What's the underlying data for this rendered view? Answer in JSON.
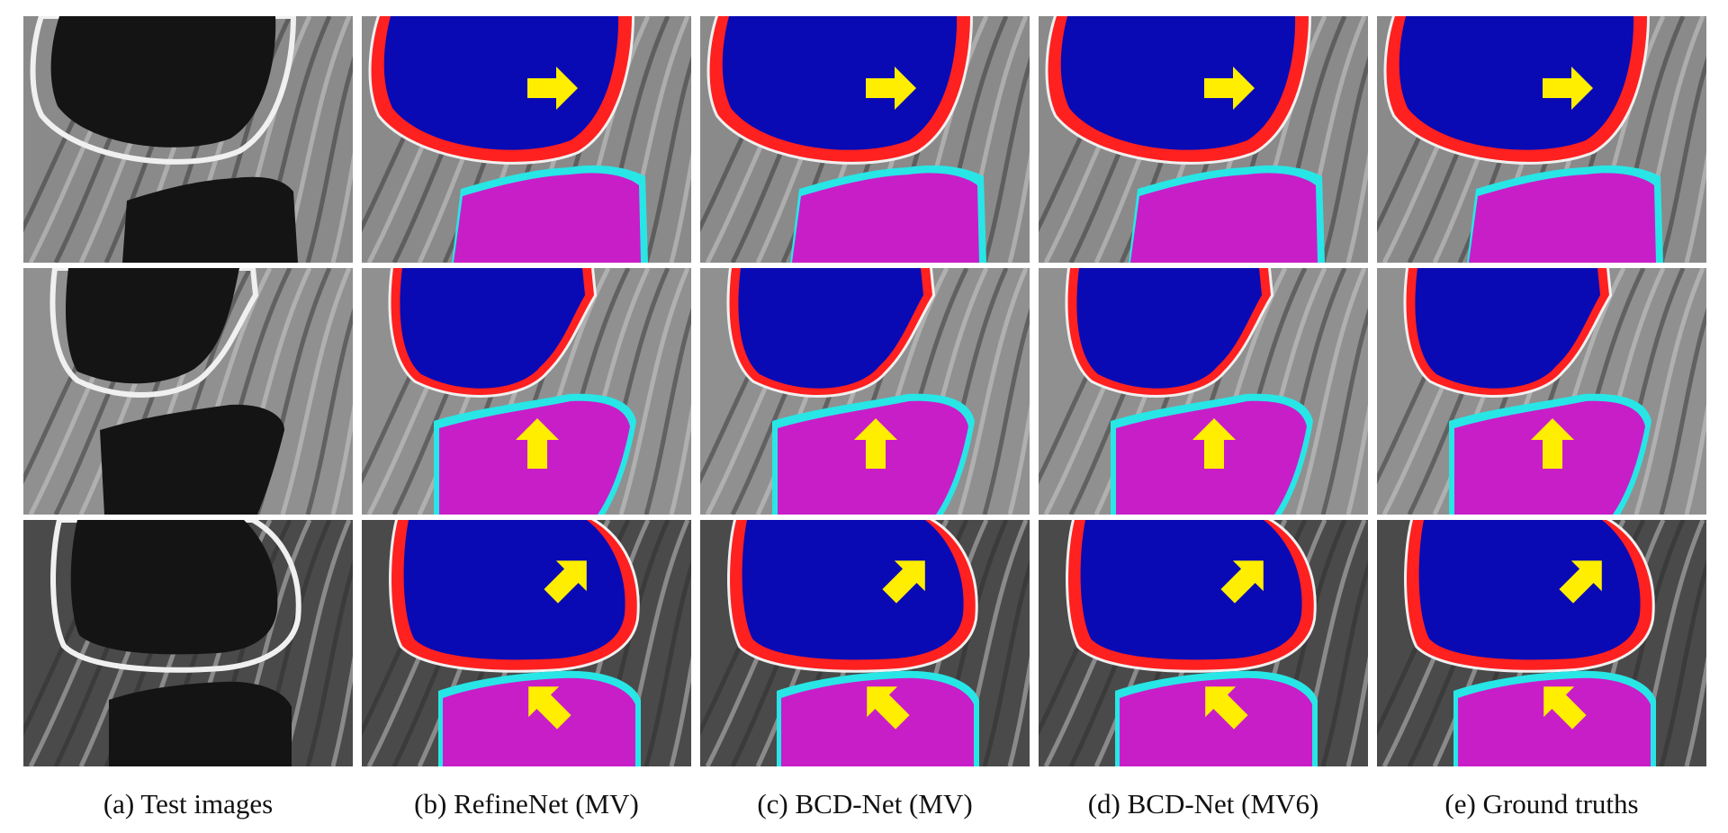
{
  "figure": {
    "columns": [
      {
        "id": "a",
        "caption": "(a) Test images",
        "kind": "mri"
      },
      {
        "id": "b",
        "caption": "(b) RefineNet (MV)",
        "kind": "seg"
      },
      {
        "id": "c",
        "caption": "(c) BCD-Net (MV)",
        "kind": "seg"
      },
      {
        "id": "d",
        "caption": "(d) BCD-Net (MV6)",
        "kind": "seg"
      },
      {
        "id": "e",
        "caption": "(e) Ground truths",
        "kind": "seg"
      }
    ],
    "rows": 3,
    "legend_colors": {
      "femur_bone": "#0a0ab4",
      "femoral_cartilage": "#ff2020",
      "tibia_bone": "#c81ec8",
      "tibial_cartilage": "#28e6e6",
      "arrow": "#ffee00"
    },
    "arrow_directions": [
      "right",
      "up",
      "up-right"
    ]
  }
}
